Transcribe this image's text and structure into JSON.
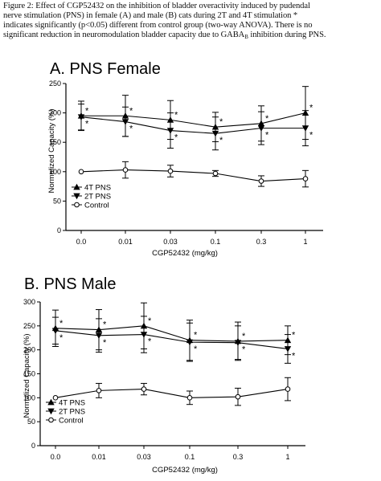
{
  "caption": {
    "line1": "Figure 2:  Effect of CGP52432  on the inhibition of bladder overactivity induced by pudendal",
    "line2": "nerve stimulation (PNS) in female (A) and male (B) cats during 2T and 4T stimulation *",
    "line3": "indicates significantly (p<0.05) different from control group (two-way ANOVA). There is no",
    "line4_pre": "significant reduction in neuromodulation bladder capacity due to GABA",
    "line4_sub": "B",
    "line4_post": "  inhibition during PNS."
  },
  "chart_data": [
    {
      "type": "line",
      "title": "A. PNS Female",
      "xlabel": "CGP52432 (mg/kg)",
      "ylabel": "Normalized Capacity (%)",
      "categories": [
        "0.0",
        "0.01",
        "0.03",
        "0.1",
        "0.3",
        "1"
      ],
      "ylim": [
        0,
        250
      ],
      "yticks": [
        0,
        50,
        100,
        150,
        200,
        250
      ],
      "legend_position": "bottom-left",
      "series": [
        {
          "name": "4T PNS",
          "marker": "triangle-up",
          "values": [
            195,
            195,
            188,
            176,
            182,
            200
          ],
          "errors": [
            25,
            35,
            33,
            25,
            30,
            45
          ],
          "sig": [
            true,
            true,
            true,
            true,
            true,
            true
          ]
        },
        {
          "name": "2T PNS",
          "marker": "triangle-down",
          "values": [
            193,
            185,
            170,
            165,
            174,
            174
          ],
          "errors": [
            22,
            25,
            30,
            28,
            28,
            30
          ],
          "sig": [
            true,
            true,
            true,
            true,
            true,
            true
          ]
        },
        {
          "name": "Control",
          "marker": "circle-open",
          "values": [
            100,
            103,
            101,
            97,
            84,
            88
          ],
          "errors": [
            0,
            14,
            10,
            5,
            9,
            14
          ],
          "sig": [
            false,
            false,
            false,
            false,
            false,
            false
          ]
        }
      ]
    },
    {
      "type": "line",
      "title": "B. PNS Male",
      "xlabel": "CGP52432 (mg/kg)",
      "ylabel": "Normalized Capacity (%)",
      "categories": [
        "0.0",
        "0.01",
        "0.03",
        "0.1",
        "0.3",
        "1"
      ],
      "ylim": [
        0,
        300
      ],
      "yticks": [
        0,
        50,
        100,
        150,
        200,
        250,
        300
      ],
      "legend_position": "bottom-left",
      "series": [
        {
          "name": "4T PNS",
          "marker": "triangle-up",
          "values": [
            245,
            242,
            250,
            220,
            218,
            220
          ],
          "errors": [
            38,
            42,
            48,
            42,
            40,
            30
          ],
          "sig": [
            true,
            true,
            true,
            true,
            true,
            true
          ]
        },
        {
          "name": "2T PNS",
          "marker": "triangle-down",
          "values": [
            240,
            230,
            232,
            216,
            215,
            202
          ],
          "errors": [
            28,
            35,
            38,
            40,
            35,
            30
          ],
          "sig": [
            true,
            true,
            true,
            true,
            true,
            true
          ]
        },
        {
          "name": "Control",
          "marker": "circle-open",
          "values": [
            100,
            115,
            118,
            100,
            102,
            118
          ],
          "errors": [
            0,
            15,
            12,
            14,
            18,
            24
          ],
          "sig": [
            false,
            false,
            false,
            false,
            false,
            false
          ]
        }
      ]
    }
  ]
}
